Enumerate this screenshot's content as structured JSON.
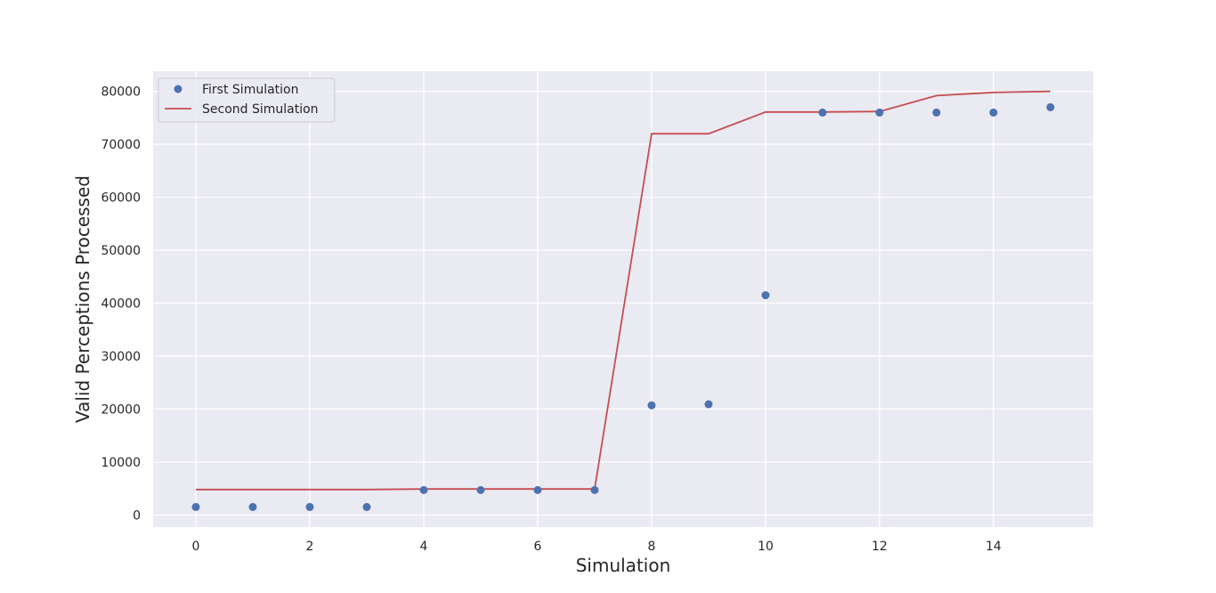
{
  "chart_data": {
    "type": "line",
    "title": "",
    "xlabel": "Simulation",
    "ylabel": "Valid Perceptions Processed",
    "xlim": [
      -0.75,
      15.75
    ],
    "ylim": [
      -2300,
      83800
    ],
    "x_ticks": [
      0,
      2,
      4,
      6,
      8,
      10,
      12,
      14
    ],
    "y_ticks": [
      0,
      10000,
      20000,
      30000,
      40000,
      50000,
      60000,
      70000,
      80000
    ],
    "grid": true,
    "legend_position": "upper left",
    "series": [
      {
        "name": "First Simulation",
        "style": "markers",
        "color": "#4c72b0",
        "x": [
          0,
          1,
          2,
          3,
          4,
          5,
          6,
          7,
          8,
          9,
          10,
          11,
          12,
          13,
          14,
          15
        ],
        "values": [
          1500,
          1500,
          1500,
          1500,
          4700,
          4700,
          4700,
          4700,
          20700,
          20900,
          41500,
          76000,
          76000,
          76000,
          76000,
          77000
        ]
      },
      {
        "name": "Second Simulation",
        "style": "line",
        "color": "#c44e52",
        "x": [
          0,
          1,
          2,
          3,
          4,
          5,
          6,
          7,
          8,
          9,
          10,
          11,
          12,
          13,
          14,
          15
        ],
        "values": [
          4800,
          4800,
          4800,
          4800,
          4900,
          4900,
          4900,
          4900,
          72000,
          72000,
          76100,
          76100,
          76200,
          79200,
          79800,
          80000
        ]
      }
    ]
  }
}
